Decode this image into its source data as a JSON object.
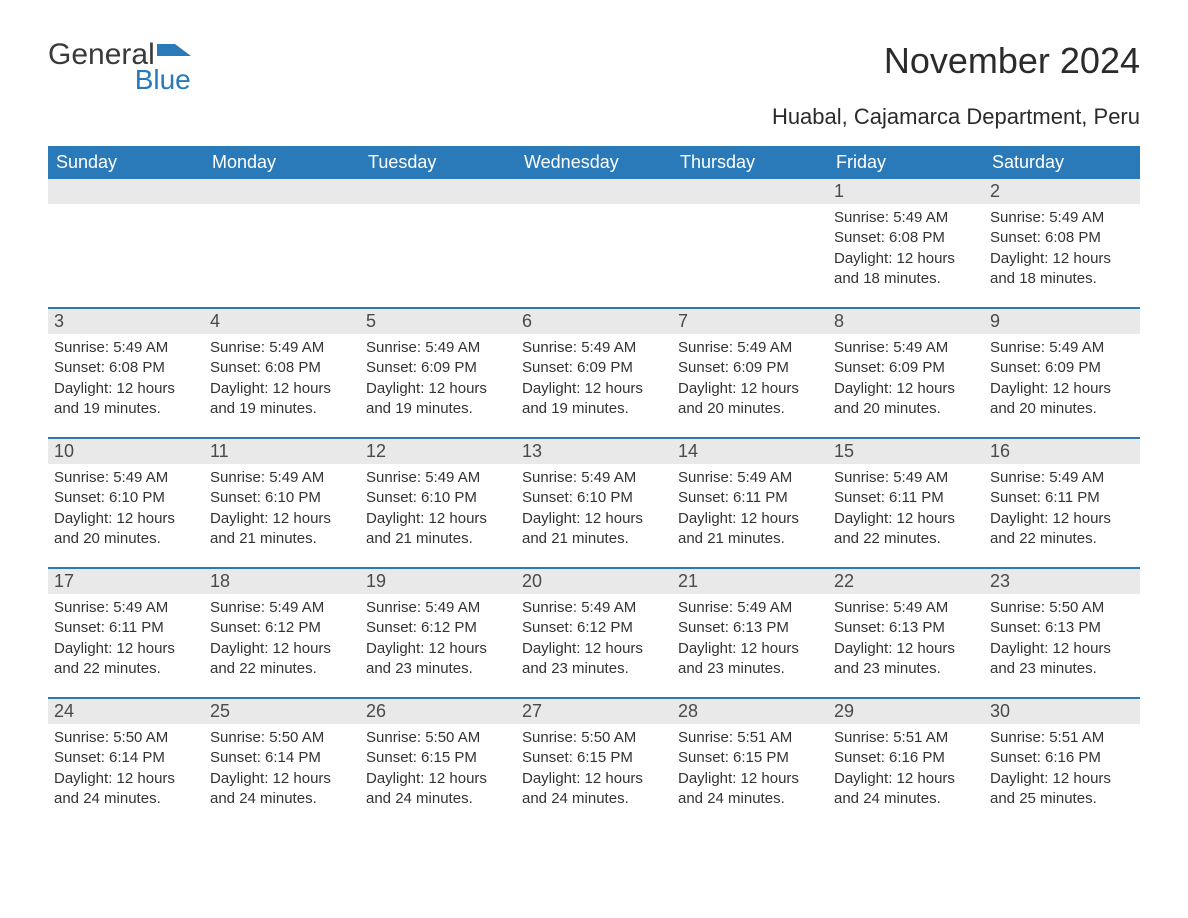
{
  "logo": {
    "word1": "General",
    "word2": "Blue",
    "flag_fill": "#2a7ab9"
  },
  "title": "November 2024",
  "location": "Huabal, Cajamarca Department, Peru",
  "header_bg": "#2a7ab9",
  "header_fg": "#ffffff",
  "daynum_bg": "#e9e9e9",
  "week_separator_color": "#2a7ab9",
  "day_headers": [
    "Sunday",
    "Monday",
    "Tuesday",
    "Wednesday",
    "Thursday",
    "Friday",
    "Saturday"
  ],
  "labels": {
    "sunrise": "Sunrise:",
    "sunset": "Sunset:",
    "daylight": "Daylight:"
  },
  "weeks": [
    [
      {
        "day": "",
        "empty": true
      },
      {
        "day": "",
        "empty": true
      },
      {
        "day": "",
        "empty": true
      },
      {
        "day": "",
        "empty": true
      },
      {
        "day": "",
        "empty": true
      },
      {
        "day": "1",
        "sunrise": "5:49 AM",
        "sunset": "6:08 PM",
        "daylight": "12 hours and 18 minutes."
      },
      {
        "day": "2",
        "sunrise": "5:49 AM",
        "sunset": "6:08 PM",
        "daylight": "12 hours and 18 minutes."
      }
    ],
    [
      {
        "day": "3",
        "sunrise": "5:49 AM",
        "sunset": "6:08 PM",
        "daylight": "12 hours and 19 minutes."
      },
      {
        "day": "4",
        "sunrise": "5:49 AM",
        "sunset": "6:08 PM",
        "daylight": "12 hours and 19 minutes."
      },
      {
        "day": "5",
        "sunrise": "5:49 AM",
        "sunset": "6:09 PM",
        "daylight": "12 hours and 19 minutes."
      },
      {
        "day": "6",
        "sunrise": "5:49 AM",
        "sunset": "6:09 PM",
        "daylight": "12 hours and 19 minutes."
      },
      {
        "day": "7",
        "sunrise": "5:49 AM",
        "sunset": "6:09 PM",
        "daylight": "12 hours and 20 minutes."
      },
      {
        "day": "8",
        "sunrise": "5:49 AM",
        "sunset": "6:09 PM",
        "daylight": "12 hours and 20 minutes."
      },
      {
        "day": "9",
        "sunrise": "5:49 AM",
        "sunset": "6:09 PM",
        "daylight": "12 hours and 20 minutes."
      }
    ],
    [
      {
        "day": "10",
        "sunrise": "5:49 AM",
        "sunset": "6:10 PM",
        "daylight": "12 hours and 20 minutes."
      },
      {
        "day": "11",
        "sunrise": "5:49 AM",
        "sunset": "6:10 PM",
        "daylight": "12 hours and 21 minutes."
      },
      {
        "day": "12",
        "sunrise": "5:49 AM",
        "sunset": "6:10 PM",
        "daylight": "12 hours and 21 minutes."
      },
      {
        "day": "13",
        "sunrise": "5:49 AM",
        "sunset": "6:10 PM",
        "daylight": "12 hours and 21 minutes."
      },
      {
        "day": "14",
        "sunrise": "5:49 AM",
        "sunset": "6:11 PM",
        "daylight": "12 hours and 21 minutes."
      },
      {
        "day": "15",
        "sunrise": "5:49 AM",
        "sunset": "6:11 PM",
        "daylight": "12 hours and 22 minutes."
      },
      {
        "day": "16",
        "sunrise": "5:49 AM",
        "sunset": "6:11 PM",
        "daylight": "12 hours and 22 minutes."
      }
    ],
    [
      {
        "day": "17",
        "sunrise": "5:49 AM",
        "sunset": "6:11 PM",
        "daylight": "12 hours and 22 minutes."
      },
      {
        "day": "18",
        "sunrise": "5:49 AM",
        "sunset": "6:12 PM",
        "daylight": "12 hours and 22 minutes."
      },
      {
        "day": "19",
        "sunrise": "5:49 AM",
        "sunset": "6:12 PM",
        "daylight": "12 hours and 23 minutes."
      },
      {
        "day": "20",
        "sunrise": "5:49 AM",
        "sunset": "6:12 PM",
        "daylight": "12 hours and 23 minutes."
      },
      {
        "day": "21",
        "sunrise": "5:49 AM",
        "sunset": "6:13 PM",
        "daylight": "12 hours and 23 minutes."
      },
      {
        "day": "22",
        "sunrise": "5:49 AM",
        "sunset": "6:13 PM",
        "daylight": "12 hours and 23 minutes."
      },
      {
        "day": "23",
        "sunrise": "5:50 AM",
        "sunset": "6:13 PM",
        "daylight": "12 hours and 23 minutes."
      }
    ],
    [
      {
        "day": "24",
        "sunrise": "5:50 AM",
        "sunset": "6:14 PM",
        "daylight": "12 hours and 24 minutes."
      },
      {
        "day": "25",
        "sunrise": "5:50 AM",
        "sunset": "6:14 PM",
        "daylight": "12 hours and 24 minutes."
      },
      {
        "day": "26",
        "sunrise": "5:50 AM",
        "sunset": "6:15 PM",
        "daylight": "12 hours and 24 minutes."
      },
      {
        "day": "27",
        "sunrise": "5:50 AM",
        "sunset": "6:15 PM",
        "daylight": "12 hours and 24 minutes."
      },
      {
        "day": "28",
        "sunrise": "5:51 AM",
        "sunset": "6:15 PM",
        "daylight": "12 hours and 24 minutes."
      },
      {
        "day": "29",
        "sunrise": "5:51 AM",
        "sunset": "6:16 PM",
        "daylight": "12 hours and 24 minutes."
      },
      {
        "day": "30",
        "sunrise": "5:51 AM",
        "sunset": "6:16 PM",
        "daylight": "12 hours and 25 minutes."
      }
    ]
  ]
}
